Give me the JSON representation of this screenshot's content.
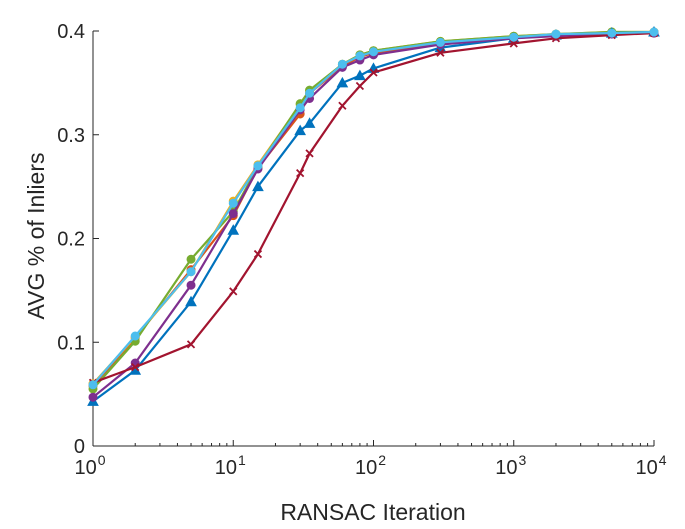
{
  "chart_data": {
    "type": "line",
    "title": "",
    "xlabel": "RANSAC Iteration",
    "ylabel": "AVG % of Inliers",
    "xscale": "log",
    "xlim": [
      1,
      10000
    ],
    "ylim": [
      0,
      0.4
    ],
    "x_ticks": [
      {
        "value": 1,
        "base": "10",
        "exp": "0"
      },
      {
        "value": 10,
        "base": "10",
        "exp": "1"
      },
      {
        "value": 100,
        "base": "10",
        "exp": "2"
      },
      {
        "value": 1000,
        "base": "10",
        "exp": "3"
      },
      {
        "value": 10000,
        "base": "10",
        "exp": "4"
      }
    ],
    "y_ticks": [
      {
        "value": 0,
        "label": "0"
      },
      {
        "value": 0.1,
        "label": "0.1"
      },
      {
        "value": 0.2,
        "label": "0.2"
      },
      {
        "value": 0.3,
        "label": "0.3"
      },
      {
        "value": 0.4,
        "label": "0.4"
      }
    ],
    "grid": false,
    "legend": "none",
    "series": [
      {
        "name": "orange",
        "color": "#D95319",
        "marker": "circle",
        "x": [
          1,
          2,
          5,
          10,
          15,
          30,
          35,
          60,
          80,
          100,
          300,
          1000,
          2000,
          5000,
          10000
        ],
        "y": [
          0.058,
          0.104,
          0.17,
          0.222,
          0.268,
          0.32,
          0.34,
          0.366,
          0.375,
          0.379,
          0.388,
          0.394,
          0.396,
          0.398,
          0.398
        ]
      },
      {
        "name": "yellow",
        "color": "#EDB120",
        "marker": "circle",
        "x": [
          1,
          2,
          5,
          10,
          15,
          30,
          35,
          60,
          80,
          100,
          300,
          1000,
          2000,
          5000,
          10000
        ],
        "y": [
          0.06,
          0.105,
          0.168,
          0.236,
          0.271,
          0.329,
          0.342,
          0.368,
          0.377,
          0.381,
          0.39,
          0.395,
          0.397,
          0.399,
          0.399
        ]
      },
      {
        "name": "green",
        "color": "#77AC30",
        "marker": "circle",
        "x": [
          1,
          2,
          5,
          10,
          15,
          30,
          35,
          60,
          80,
          100,
          300,
          1000,
          2000,
          5000,
          10000
        ],
        "y": [
          0.055,
          0.101,
          0.18,
          0.226,
          0.269,
          0.33,
          0.343,
          0.368,
          0.377,
          0.381,
          0.39,
          0.395,
          0.397,
          0.399,
          0.399
        ]
      },
      {
        "name": "blue",
        "color": "#0072BD",
        "marker": "triangle",
        "x": [
          1,
          2,
          5,
          10,
          15,
          30,
          35,
          60,
          80,
          100,
          300,
          1000,
          2000,
          5000,
          10000
        ],
        "y": [
          0.043,
          0.073,
          0.139,
          0.208,
          0.25,
          0.304,
          0.311,
          0.35,
          0.357,
          0.364,
          0.384,
          0.393,
          0.396,
          0.398,
          0.399
        ]
      },
      {
        "name": "purple",
        "color": "#7E2F8E",
        "marker": "circle",
        "x": [
          1,
          2,
          5,
          10,
          15,
          30,
          35,
          60,
          80,
          100,
          300,
          1000,
          2000,
          5000,
          10000
        ],
        "y": [
          0.047,
          0.08,
          0.155,
          0.224,
          0.267,
          0.324,
          0.335,
          0.365,
          0.372,
          0.377,
          0.387,
          0.393,
          0.395,
          0.397,
          0.398
        ]
      },
      {
        "name": "red",
        "color": "#A2142F",
        "marker": "x",
        "x": [
          1,
          2,
          5,
          10,
          15,
          30,
          35,
          60,
          80,
          100,
          300,
          1000,
          2000,
          5000,
          10000
        ],
        "y": [
          0.061,
          0.076,
          0.098,
          0.149,
          0.185,
          0.263,
          0.282,
          0.328,
          0.347,
          0.36,
          0.379,
          0.388,
          0.393,
          0.396,
          0.398
        ]
      },
      {
        "name": "light-blue",
        "color": "#4DBEEE",
        "marker": "circle",
        "x": [
          1,
          2,
          5,
          10,
          15,
          30,
          35,
          60,
          80,
          100,
          300,
          1000,
          2000,
          5000,
          10000
        ],
        "y": [
          0.059,
          0.106,
          0.168,
          0.234,
          0.27,
          0.326,
          0.34,
          0.368,
          0.376,
          0.38,
          0.389,
          0.394,
          0.397,
          0.398,
          0.399
        ]
      }
    ]
  }
}
